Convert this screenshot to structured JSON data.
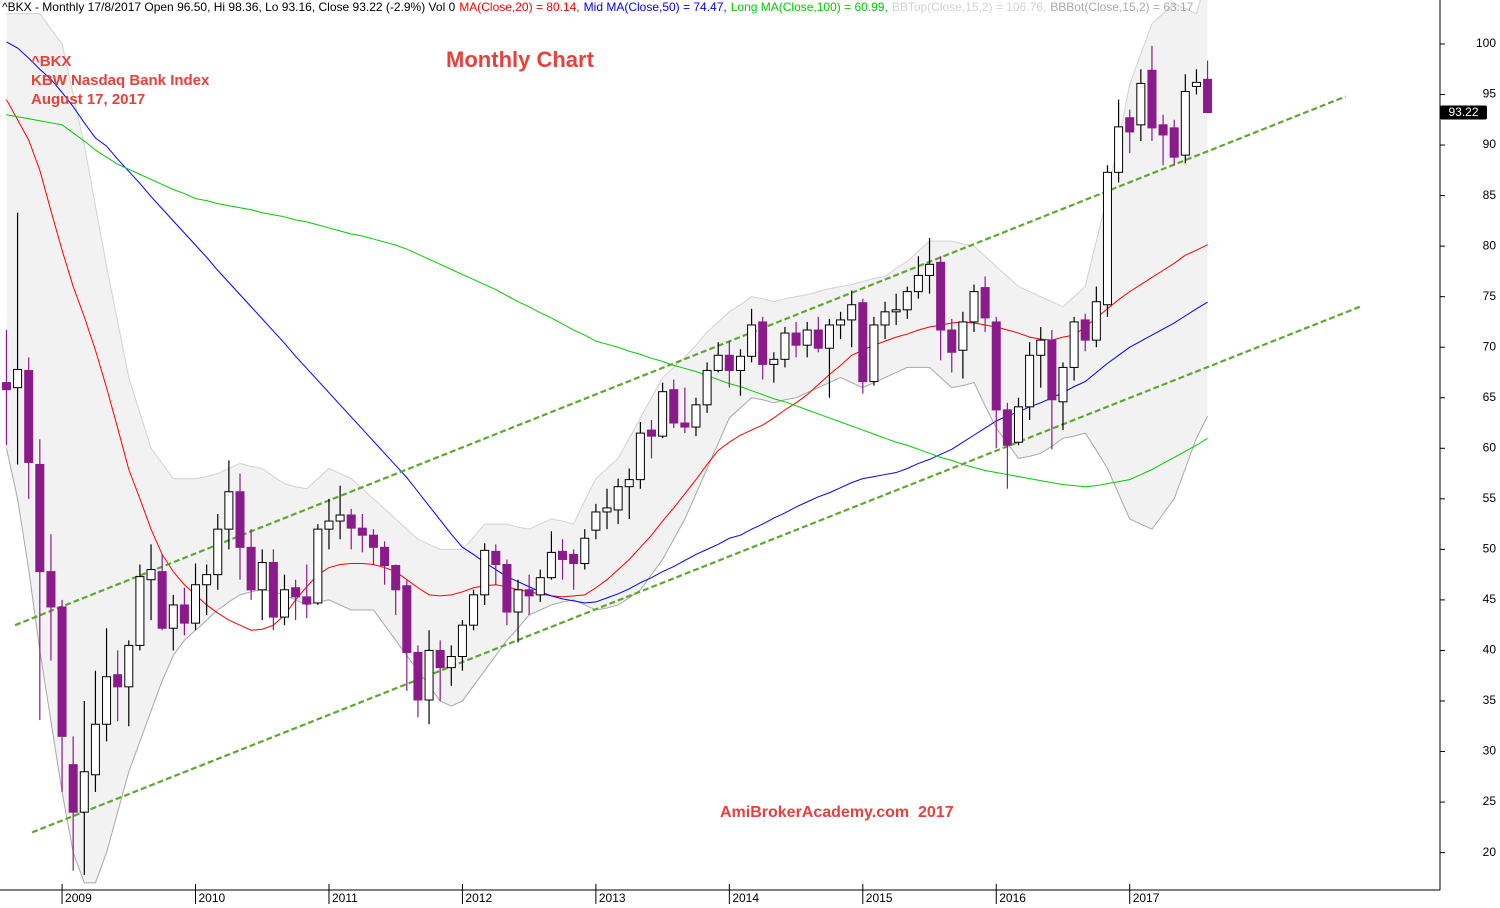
{
  "chart_data": {
    "type": "candlestick",
    "header": "^BKX - Monthly 17/8/2017 Open 96.50, Hi 98.36, Lo 93.16, Close 93.22 (-2.9%) Vol 0",
    "symbol": "^BKX",
    "subtitle": "KBW Nasdaq Bank Index",
    "date": "August 17, 2017",
    "title": "Monthly Chart",
    "annotation": "AmiBrokerAcademy.com  2017",
    "categories": [
      null,
      null,
      null,
      null,
      null,
      "2009",
      null,
      null,
      null,
      null,
      null,
      null,
      null,
      null,
      null,
      null,
      null,
      "2010",
      null,
      null,
      null,
      null,
      null,
      null,
      null,
      null,
      null,
      null,
      null,
      "2011",
      null,
      null,
      null,
      null,
      null,
      null,
      null,
      null,
      null,
      null,
      null,
      "2012",
      null,
      null,
      null,
      null,
      null,
      null,
      null,
      null,
      null,
      null,
      null,
      "2013",
      null,
      null,
      null,
      null,
      null,
      null,
      null,
      null,
      null,
      null,
      null,
      "2014",
      null,
      null,
      null,
      null,
      null,
      null,
      null,
      null,
      null,
      null,
      null,
      "2015",
      null,
      null,
      null,
      null,
      null,
      null,
      null,
      null,
      null,
      null,
      null,
      "2016",
      null,
      null,
      null,
      null,
      null,
      null,
      null,
      null,
      null,
      null,
      null,
      "2017",
      null,
      null,
      null,
      null,
      null,
      null,
      null
    ],
    "open": [
      66.5,
      66,
      67.7,
      58.4,
      47.8,
      44.3,
      28.7,
      24,
      27.7,
      32.7,
      37.6,
      36.4,
      40.5,
      47,
      47.8,
      42.2,
      44.5,
      42.7,
      46.5,
      47.5,
      52,
      55.7,
      50.2,
      46,
      48.7,
      43.3,
      46.2,
      45.3,
      44.7,
      52,
      52.8,
      53.4,
      52.1,
      51.4,
      50.2,
      48.4,
      46.4,
      39.8,
      35.1,
      40,
      38.3,
      39.4,
      42.5,
      45.5,
      49.8,
      48.5,
      43.8,
      46,
      45.5,
      47.2,
      49.8,
      49.5,
      48.6,
      51.9,
      53.7,
      53.9,
      56.2,
      56.9,
      61.8,
      61.2,
      65.8,
      62.5,
      62.1,
      64.3,
      67.7,
      69.2,
      67.7,
      69.1,
      72.5,
      68.3,
      68.8,
      71.4,
      70.2,
      71.7,
      69.9,
      72.2,
      72.7,
      74.4,
      66.6,
      72.2,
      73.5,
      73.7,
      75.5,
      77.1,
      78.4,
      71.7,
      69.7,
      72.5,
      75.9,
      72.5,
      63.8,
      60.6,
      64.1,
      69.2,
      70.7,
      64.6,
      68,
      72.7,
      70.7,
      74.2,
      87.3,
      92.7,
      92,
      97.4,
      92,
      91.7,
      89,
      95.8,
      96.5
    ],
    "high": [
      71.7,
      83.3,
      69,
      60.9,
      51.5,
      45,
      31.5,
      35,
      38,
      42.2,
      40,
      41,
      48.5,
      50.5,
      49.5,
      45.5,
      46.2,
      48.6,
      48.5,
      53.5,
      58.8,
      57.5,
      52,
      50,
      50,
      47.5,
      47,
      48.5,
      52.5,
      55,
      56.3,
      54,
      53.5,
      52,
      50.8,
      48.5,
      47,
      40.5,
      42,
      41,
      40.5,
      43,
      46,
      50.6,
      50.5,
      49,
      47,
      47.5,
      48,
      51.8,
      51,
      50,
      52,
      54.5,
      56,
      57,
      58,
      62.6,
      62.8,
      66.5,
      66.8,
      66,
      65,
      68.5,
      70.5,
      70.6,
      69.8,
      73.8,
      73,
      69.5,
      72,
      72.5,
      72.5,
      73,
      72.8,
      73.5,
      75.6,
      74.8,
      73,
      74.5,
      75.3,
      76,
      79,
      80.8,
      79,
      72.8,
      73.5,
      76.2,
      77,
      73,
      64.5,
      65,
      70.5,
      72,
      71.7,
      68.5,
      73,
      73.3,
      76,
      88,
      94.5,
      93.5,
      97.5,
      99.8,
      93,
      92.5,
      97,
      97.5,
      98.36
    ],
    "low": [
      60.3,
      58.4,
      55,
      33.1,
      39,
      26,
      18.2,
      17.8,
      26,
      31,
      33,
      32.5,
      40,
      43,
      42,
      40,
      41.5,
      42,
      43.5,
      46,
      50,
      47,
      45,
      43,
      42,
      42.5,
      43,
      43.2,
      44.5,
      50,
      51,
      50,
      49.7,
      48.5,
      46.5,
      43.5,
      36,
      33.4,
      32.7,
      35,
      36.5,
      38,
      42,
      44.5,
      46.5,
      42.5,
      40.8,
      43.5,
      44.8,
      47,
      47,
      46,
      48,
      51,
      52,
      52.5,
      53,
      56,
      59,
      61,
      62,
      61.5,
      61.2,
      63.5,
      67.5,
      66,
      65.2,
      68.5,
      66.8,
      66.5,
      68,
      69,
      69,
      69.5,
      65,
      70.8,
      70,
      65.4,
      66.2,
      70.8,
      72.2,
      72.8,
      74.8,
      75.3,
      68.7,
      67.5,
      66.9,
      71.5,
      71.5,
      60,
      56,
      60.3,
      62.8,
      66,
      59.9,
      61.8,
      66.7,
      69.6,
      70,
      73,
      86.3,
      89.2,
      90.4,
      90.4,
      88,
      88,
      88.2,
      95,
      93.16
    ],
    "close": [
      65.8,
      67.8,
      58.6,
      47.8,
      44.3,
      31.5,
      24,
      28,
      32.7,
      37.4,
      36.4,
      40.5,
      47.3,
      48,
      42.2,
      44.5,
      42.7,
      46.5,
      47.5,
      52,
      55.7,
      50.2,
      46,
      48.7,
      43.3,
      46,
      45.3,
      44.6,
      52,
      52.8,
      53.4,
      52.1,
      51.4,
      50.2,
      48.4,
      46,
      39.8,
      35.1,
      40,
      38.3,
      39.4,
      42.5,
      45.5,
      49.9,
      48.5,
      43.8,
      46,
      45.4,
      47.2,
      49.7,
      49,
      48.6,
      51.1,
      53.7,
      54.1,
      56.2,
      56.9,
      61.5,
      61.2,
      65.6,
      62.5,
      62.1,
      64.3,
      67.7,
      69.2,
      67.7,
      69.1,
      72.2,
      68.3,
      68.8,
      71.4,
      70.2,
      71.7,
      69.9,
      72.2,
      72.7,
      74.2,
      66.6,
      72.2,
      73.5,
      73.7,
      75.5,
      77.1,
      78.2,
      71.7,
      69.5,
      72.5,
      75.5,
      72.9,
      63.8,
      60.3,
      64.1,
      69.2,
      70.7,
      64.8,
      68,
      72.5,
      70.7,
      74.5,
      87.3,
      91.8,
      91.3,
      96.1,
      91.7,
      91,
      88.8,
      95.3,
      96.2,
      93.22
    ],
    "up_color": "#ffffff",
    "up_edge": "#000000",
    "down_color": "#8b1a8b",
    "series": [
      {
        "name": "MA(Close,20) = 80.14,",
        "color": "#ff0000",
        "values": [
          94.5,
          92.5,
          90.5,
          87.5,
          83.5,
          79.6,
          76,
          73,
          69.7,
          66,
          62,
          57.9,
          55,
          52,
          49.5,
          47.8,
          46.5,
          45.5,
          44.5,
          43.7,
          43,
          42.5,
          42,
          42.1,
          42.5,
          43.5,
          45,
          46.3,
          47.5,
          48.2,
          48.5,
          48.6,
          48.6,
          48.5,
          48.2,
          47.8,
          47,
          46.2,
          45.5,
          45.4,
          45.5,
          45.8,
          46.2,
          46.4,
          46.5,
          46.3,
          46,
          45.8,
          45.6,
          45.4,
          45.3,
          45.4,
          45.5,
          46.2,
          47,
          48,
          49,
          50.2,
          51.4,
          52.8,
          54.1,
          55.5,
          56.9,
          58.4,
          59.8,
          60.6,
          61.3,
          61.8,
          62.3,
          63,
          63.8,
          64.5,
          65.3,
          66.3,
          67.3,
          68.2,
          69.2,
          69.7,
          70.2,
          70.6,
          71,
          71.3,
          71.7,
          72,
          72.2,
          72.4,
          72.5,
          72.4,
          72.2,
          72,
          71.7,
          71.4,
          71,
          70.8,
          70.7,
          71,
          71.2,
          72,
          72.9,
          73.8,
          74.7,
          75.5,
          76.2,
          76.9,
          77.6,
          78.3,
          79.1,
          79.6,
          80.14
        ]
      },
      {
        "name": "Mid MA(Close,50) = 74.47,",
        "color": "#0000ff",
        "values": [
          100.2,
          99.6,
          98.6,
          97.5,
          96.5,
          95.2,
          93.8,
          92.2,
          90.7,
          89.9,
          88.6,
          87.4,
          86.2,
          84.9,
          83.7,
          82.5,
          81.3,
          80.1,
          78.9,
          77.6,
          76.4,
          75.2,
          74,
          72.8,
          71.6,
          70.4,
          69.1,
          67.9,
          66.7,
          65.5,
          64.3,
          63.1,
          61.9,
          60.7,
          59.5,
          58.3,
          57.1,
          55.7,
          54.3,
          52.9,
          51.5,
          50.2,
          49.5,
          48.7,
          48,
          47.3,
          46.8,
          46.3,
          45.8,
          45.4,
          45.1,
          44.9,
          44.7,
          44.8,
          45.2,
          45.6,
          46.1,
          46.7,
          47.2,
          47.8,
          48.3,
          48.9,
          49.5,
          50,
          50.5,
          51.1,
          51.4,
          52,
          52.5,
          53.1,
          53.6,
          54.2,
          54.7,
          55.2,
          55.6,
          56.1,
          56.6,
          57,
          57.2,
          57.4,
          57.6,
          58,
          58.5,
          58.9,
          59.4,
          59.9,
          60.6,
          61.3,
          62,
          62.7,
          63.2,
          63.6,
          64.1,
          64.5,
          65,
          65.5,
          66.1,
          66.6,
          67.5,
          68.4,
          69.2,
          70,
          70.6,
          71.2,
          71.8,
          72.4,
          73.1,
          73.8,
          74.47
        ]
      },
      {
        "name": "Long MA(Close,100) = 60.99,",
        "color": "#00cc00",
        "values": [
          93,
          92.8,
          92.6,
          92.4,
          92.2,
          92,
          91.2,
          90.4,
          89.5,
          88.8,
          88.1,
          87.6,
          87.1,
          86.6,
          86.1,
          85.6,
          85.2,
          84.7,
          84.5,
          84.2,
          84,
          83.8,
          83.6,
          83.3,
          83.1,
          82.9,
          82.6,
          82.4,
          82.1,
          81.8,
          81.5,
          81.2,
          81,
          80.7,
          80.4,
          80.1,
          79.7,
          79.2,
          78.7,
          78.2,
          77.7,
          77.2,
          76.7,
          76.2,
          75.7,
          75.1,
          74.5,
          74,
          73.4,
          72.9,
          72.3,
          71.7,
          71.2,
          70.6,
          70.3,
          70,
          69.6,
          69.3,
          68.9,
          68.6,
          68.2,
          67.9,
          67.6,
          67.2,
          66.8,
          66.4,
          66.1,
          65.7,
          65.3,
          64.9,
          64.6,
          64.2,
          63.8,
          63.4,
          63,
          62.6,
          62.2,
          61.8,
          61.4,
          61,
          60.6,
          60.3,
          59.9,
          59.5,
          59.1,
          58.8,
          58.4,
          58.1,
          57.8,
          57.6,
          57.4,
          57.2,
          57,
          56.8,
          56.6,
          56.4,
          56.3,
          56.2,
          56.3,
          56.5,
          56.7,
          56.9,
          57.4,
          57.9,
          58.5,
          59.1,
          59.7,
          60.3,
          60.99
        ]
      }
    ],
    "band": {
      "fill": "#f2f2f2",
      "upper": {
        "name": "BBTop(Close,15,2) = 106.76,",
        "color": "#d2d2d2",
        "values": [
          103,
          103,
          103,
          103,
          101.5,
          100,
          95,
          90,
          84,
          78,
          72.5,
          67,
          63.5,
          60,
          58.5,
          57,
          57,
          57,
          57.2,
          57.5,
          58,
          58.5,
          58.2,
          58,
          57.2,
          56.5,
          56.2,
          56,
          57,
          58,
          57.5,
          57,
          56,
          55,
          54,
          53,
          52,
          51,
          50.5,
          50,
          50,
          50,
          51.2,
          52.5,
          52.5,
          52.5,
          52.2,
          52,
          52.5,
          53,
          52.8,
          52.5,
          54.8,
          57,
          58,
          59,
          61,
          63,
          65,
          67,
          68,
          69,
          70.2,
          71.5,
          72.5,
          73.5,
          74.2,
          75,
          74.8,
          74.5,
          74.8,
          75,
          75.2,
          75.5,
          75.8,
          76,
          76.2,
          76.5,
          76.8,
          77,
          77.8,
          78.5,
          79.5,
          80.5,
          80.5,
          80.5,
          80.2,
          80,
          79,
          78,
          77,
          76,
          75.5,
          75,
          74.5,
          74,
          75,
          76,
          80.5,
          85,
          90.5,
          96,
          99,
          102,
          103,
          104,
          103.5,
          103,
          106.76
        ]
      },
      "lower": {
        "name": "BBBot(Close,15,2) = 63.17",
        "color": "#a8a8a8",
        "values": [
          60,
          55,
          48,
          40,
          33,
          26,
          20,
          17,
          17,
          20,
          24,
          28,
          31,
          34,
          37,
          39.5,
          41,
          42,
          43,
          44,
          44.8,
          45.5,
          45.8,
          46,
          45.8,
          45.5,
          45,
          44.5,
          44.8,
          45,
          44.5,
          44,
          44,
          44,
          42.5,
          41,
          39.5,
          38,
          36.5,
          35,
          34.5,
          35,
          36.5,
          38,
          39.5,
          41,
          42.2,
          43.5,
          44,
          44.5,
          44.8,
          45,
          44.5,
          44,
          44.2,
          44.5,
          45.2,
          46,
          47.5,
          49,
          51,
          53,
          55.5,
          58,
          60.5,
          63,
          64,
          65,
          64.8,
          64.5,
          64.8,
          65,
          65.5,
          66,
          66.5,
          67,
          66.5,
          66,
          66.5,
          67,
          67.5,
          68,
          68,
          68,
          67,
          66,
          66.2,
          66.5,
          64.2,
          62,
          60.5,
          59,
          59.2,
          59.5,
          60.2,
          61,
          61.2,
          61.5,
          59.8,
          58,
          55.5,
          53,
          52.5,
          52,
          53.5,
          55,
          58,
          61,
          63.17
        ]
      }
    },
    "trendlines": [
      {
        "color": "#5ea832",
        "start": [
          0.77,
          42.5
        ],
        "end": [
          120.4,
          94.8
        ]
      },
      {
        "color": "#5ea832",
        "start": [
          2.3,
          22.0
        ],
        "end": [
          121.7,
          74.0
        ]
      }
    ],
    "xlim": [
      -0.58,
      128.9
    ],
    "ylim": [
      16.3,
      104.35
    ],
    "yticks": [
      20,
      25,
      30,
      35,
      40,
      45,
      50,
      55,
      60,
      65,
      70,
      75,
      80,
      85,
      90,
      95,
      100
    ],
    "grid": false
  }
}
